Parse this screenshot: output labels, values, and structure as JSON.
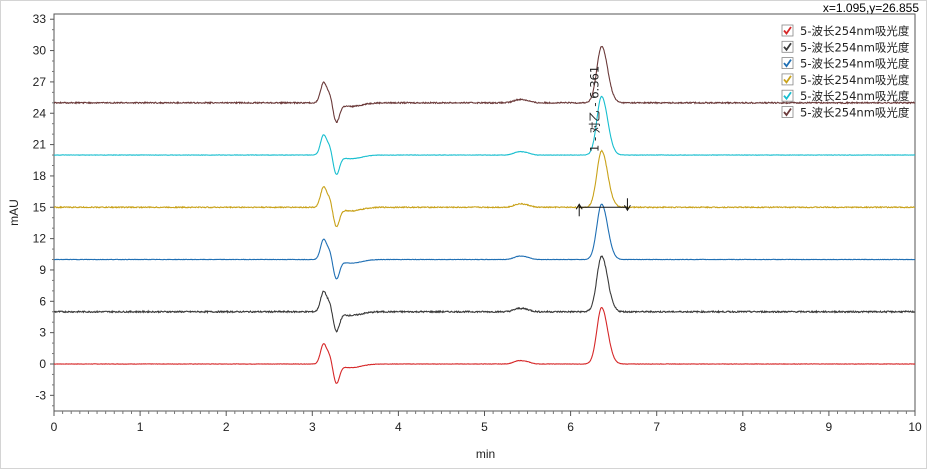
{
  "cursor_readout": "x=1.095,y=26.855",
  "chart_data": {
    "type": "line",
    "xlabel": "min",
    "ylabel": "mAU",
    "xlim": [
      0,
      10
    ],
    "ylim": [
      -4.5,
      33.5
    ],
    "x_ticks": [
      "0",
      "1",
      "2",
      "3",
      "4",
      "5",
      "6",
      "7",
      "8",
      "9",
      "10"
    ],
    "y_ticks": [
      "-3",
      "0",
      "3",
      "6",
      "9",
      "12",
      "15",
      "18",
      "21",
      "24",
      "27",
      "30",
      "33"
    ],
    "series": [
      {
        "name": "5-波长254nm吸光度",
        "color": "#d62728",
        "baseline": 0,
        "peak_height": 5.4,
        "peak_x": 6.36,
        "noise": 0.02
      },
      {
        "name": "5-波长254nm吸光度",
        "color": "#3a3a3a",
        "baseline": 5,
        "peak_height": 5.3,
        "peak_x": 6.36,
        "noise": 0.07
      },
      {
        "name": "5-波长254nm吸光度",
        "color": "#1f6fb4",
        "baseline": 10,
        "peak_height": 5.3,
        "peak_x": 6.36,
        "noise": 0.02
      },
      {
        "name": "5-波长254nm吸光度",
        "color": "#c9a21a",
        "baseline": 15,
        "peak_height": 5.4,
        "peak_x": 6.36,
        "noise": 0.05
      },
      {
        "name": "5-波长254nm吸光度",
        "color": "#17becf",
        "baseline": 20,
        "peak_height": 5.6,
        "peak_x": 6.36,
        "noise": 0.02
      },
      {
        "name": "5-波长254nm吸光度",
        "color": "#6b3a3a",
        "baseline": 25,
        "peak_height": 5.4,
        "peak_x": 6.36,
        "noise": 0.06
      }
    ],
    "annotation": {
      "text": "1 - 对乙 - 6.361",
      "x": 6.36,
      "baseline_start_x": 6.1,
      "baseline_end_x": 6.66,
      "baseline_y": 15
    },
    "legend_position": "top-right",
    "grid": false
  }
}
